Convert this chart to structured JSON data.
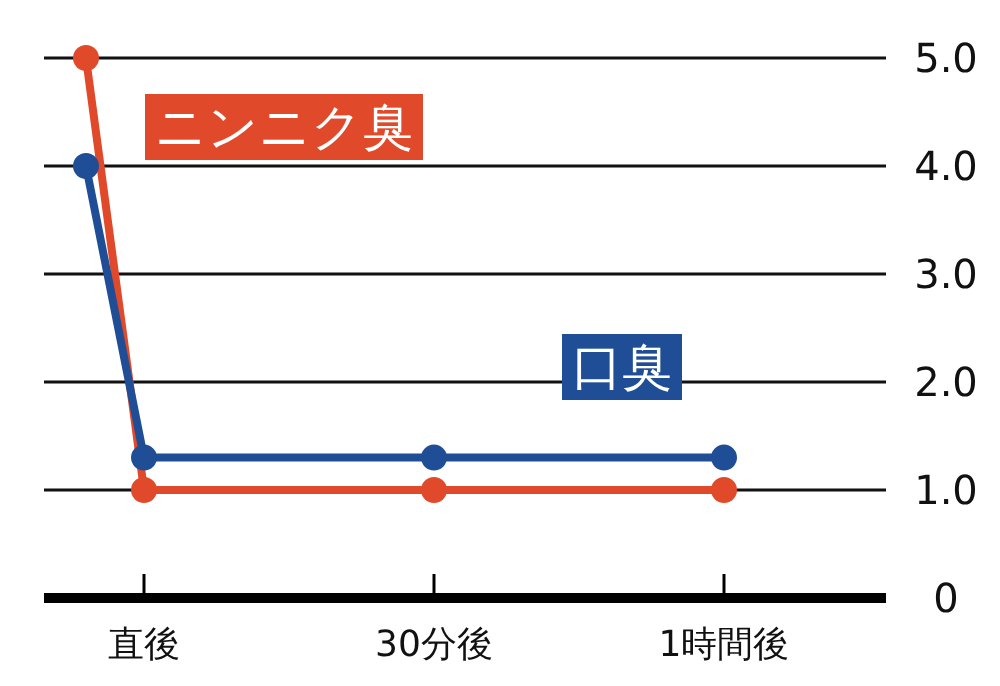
{
  "chart_data": {
    "type": "line",
    "categories": [
      null,
      "直後",
      null,
      null,
      null,
      null,
      "30分後",
      null,
      null,
      null,
      null,
      "1時間後"
    ],
    "series": [
      {
        "name": "ニンニク臭",
        "color": "#e04a2a",
        "values": [
          5.0,
          1.0,
          null,
          null,
          null,
          null,
          1.0,
          null,
          null,
          null,
          null,
          1.0
        ]
      },
      {
        "name": "口臭",
        "color": "#1f4e96",
        "values": [
          4.0,
          1.3,
          null,
          null,
          null,
          null,
          1.3,
          null,
          null,
          null,
          null,
          1.3
        ]
      }
    ],
    "ylim": [
      0,
      5
    ],
    "yticks": [
      0,
      {
        "value": 1,
        "label": "1.0"
      },
      {
        "value": 2,
        "label": "2.0"
      },
      {
        "value": 3,
        "label": "3.0"
      },
      {
        "value": 4,
        "label": "4.0"
      },
      {
        "value": 5,
        "label": "5.0"
      }
    ],
    "grid": "y",
    "marker": "circle",
    "line_style": "solid"
  }
}
